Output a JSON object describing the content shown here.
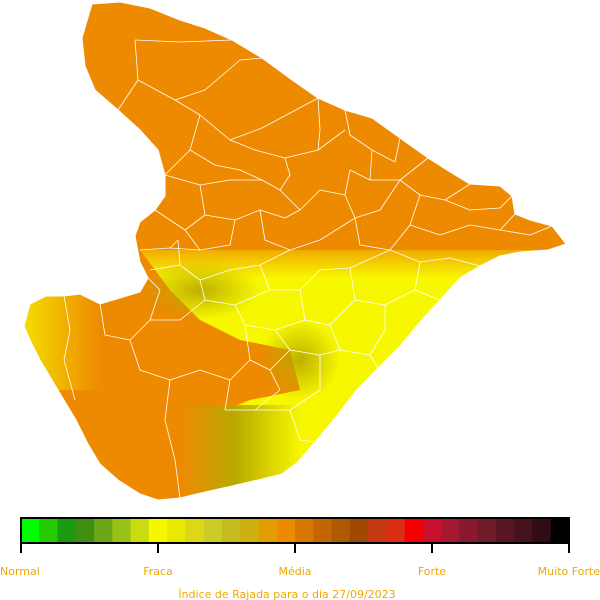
{
  "map": {
    "colors": {
      "orange": "#ee8a00",
      "yellow": "#f7f700",
      "olive": "#b8a800",
      "borders": "#ffffff"
    }
  },
  "legend": {
    "swatches": [
      "#00ff00",
      "#22cc00",
      "#1a9a10",
      "#3f8f12",
      "#6aa81a",
      "#98c216",
      "#c8dc10",
      "#f6f600",
      "#e8e800",
      "#dcd818",
      "#cccc28",
      "#c4bc20",
      "#d0b010",
      "#e29e00",
      "#ee8a00",
      "#d87800",
      "#c46600",
      "#b05a00",
      "#a04800",
      "#c23a10",
      "#dc2e10",
      "#f40000",
      "#c8102c",
      "#a41830",
      "#8a1830",
      "#701a2a",
      "#5a1624",
      "#46121e",
      "#300c14",
      "#000000"
    ],
    "ticks": [
      "Normal",
      "Fraca",
      "Média",
      "Forte",
      "Muito Forte"
    ],
    "label_color": "#f0a800",
    "tick_color": "#000000"
  },
  "caption": "Índice de Rajada para o dia 27/09/2023"
}
